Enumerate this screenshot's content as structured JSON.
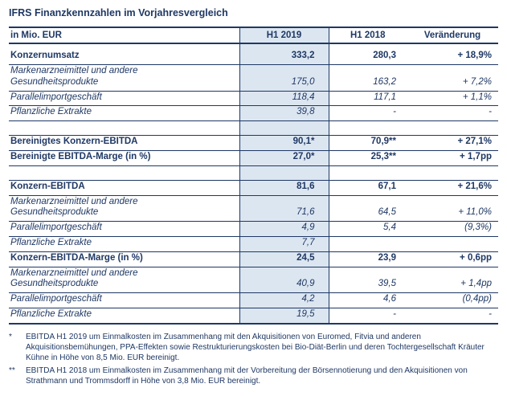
{
  "title": "IFRS Finanzkennzahlen im Vorjahresvergleich",
  "colors": {
    "text_navy": "#1f3864",
    "column_highlight": "#dce6f1",
    "background": "#ffffff"
  },
  "table": {
    "col_headers": [
      "in Mio. EUR",
      "H1 2019",
      "H1 2018",
      "Veränderung"
    ],
    "rows": [
      {
        "label": "Konzernumsatz",
        "style": "bold",
        "v2019": "333,2",
        "v2018": "280,3",
        "change": "+ 18,9%"
      },
      {
        "label": "Markenarzneimittel und andere Gesundheitsprodukte",
        "style": "italic",
        "v2019": "175,0",
        "v2018": "163,2",
        "change": "+ 7,2%"
      },
      {
        "label": "Parallelimportgeschäft",
        "style": "italic",
        "v2019": "118,4",
        "v2018": "117,1",
        "change": "+ 1,1%"
      },
      {
        "label": "Pflanzliche Extrakte",
        "style": "italic",
        "v2019": "39,8",
        "v2018": "-",
        "change": "-"
      },
      {
        "type": "spacer"
      },
      {
        "label": "Bereinigtes Konzern-EBITDA",
        "style": "bold",
        "v2019": "90,1*",
        "v2018": "70,9**",
        "change": "+ 27,1%"
      },
      {
        "label": "Bereinigte EBITDA-Marge (in %)",
        "style": "bold",
        "v2019": "27,0*",
        "v2018": "25,3**",
        "change": "+ 1,7pp"
      },
      {
        "type": "spacer"
      },
      {
        "label": "Konzern-EBITDA",
        "style": "bold",
        "v2019": "81,6",
        "v2018": "67,1",
        "change": "+ 21,6%"
      },
      {
        "label": "Markenarzneimittel und andere Gesundheitsprodukte",
        "style": "italic",
        "v2019": "71,6",
        "v2018": "64,5",
        "change": "+ 11,0%"
      },
      {
        "label": "Parallelimportgeschäft",
        "style": "italic",
        "v2019": "4,9",
        "v2018": "5,4",
        "change": "(9,3%)"
      },
      {
        "label": "Pflanzliche Extrakte",
        "style": "italic",
        "v2019": "7,7",
        "v2018": "",
        "change": ""
      },
      {
        "label": "Konzern-EBITDA-Marge (in %)",
        "style": "bold",
        "v2019": "24,5",
        "v2018": "23,9",
        "change": "+ 0,6pp"
      },
      {
        "label": "Markenarzneimittel und andere Gesundheitsprodukte",
        "style": "italic",
        "v2019": "40,9",
        "v2018": "39,5",
        "change": "+ 1,4pp"
      },
      {
        "label": "Parallelimportgeschäft",
        "style": "italic",
        "v2019": "4,2",
        "v2018": "4,6",
        "change": "(0,4pp)"
      },
      {
        "label": "Pflanzliche Extrakte",
        "style": "italic",
        "v2019": "19,5",
        "v2018": "-",
        "change": "-"
      }
    ]
  },
  "footnotes": [
    {
      "marker": "*",
      "text": "EBITDA H1 2019 um Einmalkosten im Zusammenhang mit den Akquisitionen von Euromed, Fitvia und anderen Akquisitionsbemühungen, PPA-Effekten sowie Restrukturierungskosten bei Bio-Diät-Berlin und deren Tochtergesellschaft Kräuter Kühne in Höhe von 8,5 Mio. EUR bereinigt."
    },
    {
      "marker": "**",
      "text": "EBITDA H1 2018 um Einmalkosten im Zusammenhang mit der Vorbereitung der Börsennotierung und den Akquisitionen von Strathmann und Trommsdorff in Höhe von 3,8 Mio. EUR bereinigt."
    }
  ]
}
